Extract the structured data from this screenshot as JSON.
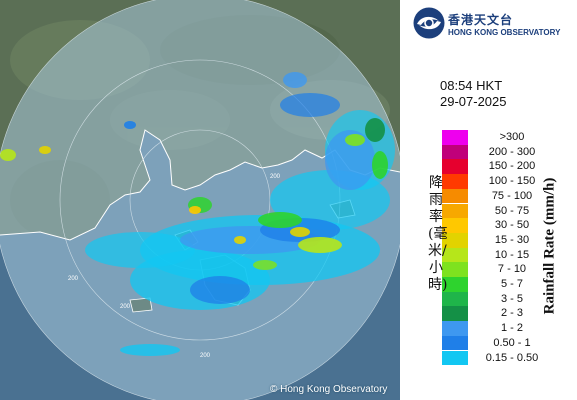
{
  "map": {
    "range_rings": [
      {
        "label": "200"
      },
      {
        "label": "200"
      },
      {
        "label": "200"
      },
      {
        "label": "200"
      }
    ],
    "copyright": "© Hong Kong Observatory",
    "colors": {
      "land": "#5b6f55",
      "sea": "#4a7191",
      "radar_disc": "#9cc1d8",
      "coastline": "#ffffff"
    }
  },
  "brand": {
    "name_zh": "香港天文台",
    "name_en": "HONG KONG OBSERVATORY",
    "logo_icon": "hko-logo-icon"
  },
  "time": "08:54 HKT",
  "date": "29-07-2025",
  "legend": {
    "title_en": "Rainfall Rate (mm/h)",
    "title_zh": "降雨率(毫米/小時)",
    "items": [
      {
        "label": ">300",
        "color": "#ee00ee"
      },
      {
        "label": "200 - 300",
        "color": "#c0007a"
      },
      {
        "label": "150 - 200",
        "color": "#e6002e"
      },
      {
        "label": "100 - 150",
        "color": "#ff3a00"
      },
      {
        "label": "75 - 100",
        "color": "#f68b00"
      },
      {
        "label": "50 - 75",
        "color": "#f7a800"
      },
      {
        "label": "30 - 50",
        "color": "#ffc800"
      },
      {
        "label": "15 - 30",
        "color": "#e2d300"
      },
      {
        "label": "10 - 15",
        "color": "#b6e61a"
      },
      {
        "label": "7 - 10",
        "color": "#7ee21f"
      },
      {
        "label": "5 - 7",
        "color": "#2ed32e"
      },
      {
        "label": "3 - 5",
        "color": "#1fb54a"
      },
      {
        "label": "2 - 3",
        "color": "#149046"
      },
      {
        "label": "1 - 2",
        "color": "#3e98f0"
      },
      {
        "label": "0.50 - 1",
        "color": "#1f7fe8"
      },
      {
        "label": "0.15 - 0.50",
        "color": "#12c7f2"
      }
    ]
  }
}
